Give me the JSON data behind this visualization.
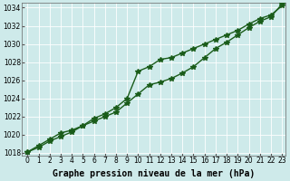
{
  "line1": {
    "x": [
      0,
      1,
      2,
      3,
      4,
      5,
      6,
      7,
      8,
      9,
      10,
      11,
      12,
      13,
      14,
      15,
      16,
      17,
      18,
      19,
      20,
      21,
      22,
      23
    ],
    "y": [
      1018.1,
      1018.6,
      1019.3,
      1019.8,
      1020.3,
      1021.0,
      1021.8,
      1022.3,
      1023.0,
      1024.0,
      1027.0,
      1027.5,
      1028.3,
      1028.5,
      1029.0,
      1029.5,
      1030.0,
      1030.5,
      1031.0,
      1031.5,
      1032.2,
      1032.8,
      1033.2,
      1034.2
    ]
  },
  "line2": {
    "x": [
      0,
      1,
      2,
      3,
      4,
      5,
      6,
      7,
      8,
      9,
      10,
      11,
      12,
      13,
      14,
      15,
      16,
      17,
      18,
      19,
      20,
      21,
      22,
      23
    ],
    "y": [
      1018.1,
      1018.8,
      1019.5,
      1020.2,
      1020.5,
      1021.0,
      1021.5,
      1022.0,
      1022.5,
      1023.5,
      1024.5,
      1025.5,
      1025.8,
      1026.2,
      1026.8,
      1027.5,
      1028.5,
      1029.5,
      1030.2,
      1031.0,
      1031.8,
      1032.5,
      1033.0,
      1034.4
    ]
  },
  "ylim": [
    1018,
    1034
  ],
  "xlim": [
    0,
    23
  ],
  "yticks": [
    1018,
    1020,
    1022,
    1024,
    1026,
    1028,
    1030,
    1032,
    1034
  ],
  "xticks": [
    0,
    1,
    2,
    3,
    4,
    5,
    6,
    7,
    8,
    9,
    10,
    11,
    12,
    13,
    14,
    15,
    16,
    17,
    18,
    19,
    20,
    21,
    22,
    23
  ],
  "xlabel": "Graphe pression niveau de la mer (hPa)",
  "line_color": "#1a5c1a",
  "bg_color": "#ceeaea",
  "grid_color": "#b0d8d8",
  "marker": "*",
  "marker_size": 4,
  "linewidth": 1.0,
  "xlabel_fontsize": 7,
  "tick_fontsize": 5.5
}
